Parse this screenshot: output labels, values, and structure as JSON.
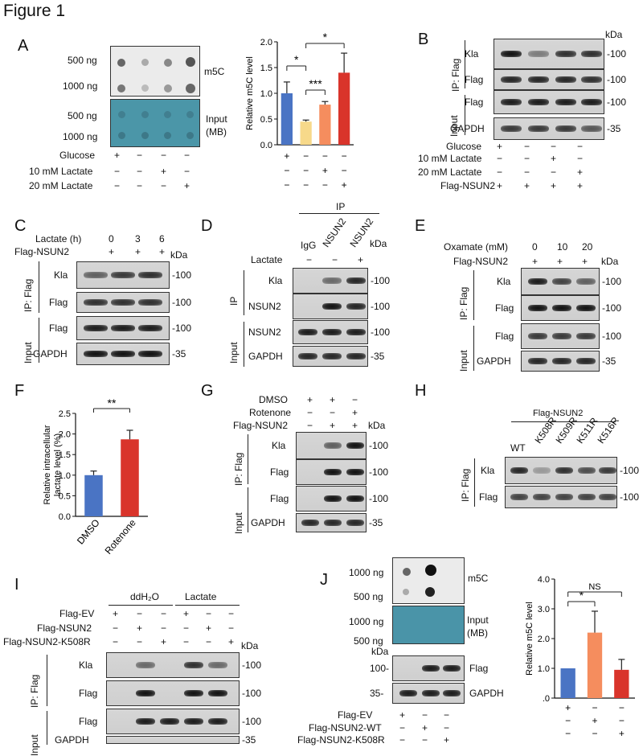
{
  "figure_title": "Figure 1",
  "panels": {
    "A": {
      "label": "A",
      "rows": [
        "500 ng",
        "1000 ng",
        "500 ng",
        "1000 ng"
      ],
      "m5c": "m5C",
      "input": "Input",
      "mb": "(MB)",
      "conds": [
        "Glucose",
        "10 mM Lactate",
        "20 mM Lactate"
      ],
      "signs": [
        [
          "+",
          "−",
          "−",
          "−"
        ],
        [
          "−",
          "−",
          "+",
          "−"
        ],
        [
          "−",
          "−",
          "−",
          "+"
        ]
      ]
    },
    "B": {
      "label": "B",
      "kda": "kDa",
      "ip": "IP: Flag",
      "input": "Input",
      "bands": [
        "Kla",
        "Flag",
        "Flag",
        "GAPDH"
      ],
      "mw": [
        "100",
        "100",
        "100",
        "35"
      ],
      "conds": [
        "Glucose",
        "10 mM Lactate",
        "20 mM Lactate",
        "Flag-NSUN2"
      ],
      "signs": [
        [
          "+",
          "−",
          "−",
          "−"
        ],
        [
          "−",
          "−",
          "+",
          "−"
        ],
        [
          "−",
          "−",
          "−",
          "+"
        ],
        [
          "+",
          "+",
          "+",
          "+"
        ]
      ]
    },
    "C": {
      "label": "C",
      "kda": "kDa",
      "ip": "IP: Flag",
      "input": "Input",
      "bands": [
        "Kla",
        "Flag",
        "Flag",
        "GAPDH"
      ],
      "mw": [
        "100",
        "100",
        "100",
        "35"
      ],
      "conds": [
        "Lactate (h)",
        "Flag-NSUN2"
      ],
      "signs": [
        [
          "0",
          "3",
          "6"
        ],
        [
          "+",
          "+",
          "+"
        ]
      ]
    },
    "D": {
      "label": "D",
      "kda": "kDa",
      "ip_top": "IP",
      "cols": [
        "IgG",
        "NSUN2",
        "NSUN2"
      ],
      "lactate": "Lactate",
      "lac_signs": [
        "−",
        "−",
        "+"
      ],
      "ip": "IP",
      "input": "Input",
      "bands": [
        "Kla",
        "NSUN2",
        "NSUN2",
        "GAPDH"
      ],
      "mw": [
        "100",
        "100",
        "100",
        "35"
      ]
    },
    "E": {
      "label": "E",
      "kda": "kDa",
      "ip": "IP: Flag",
      "input": "Input",
      "bands": [
        "Kla",
        "Flag",
        "Flag",
        "GAPDH"
      ],
      "mw": [
        "100",
        "100",
        "100",
        "35"
      ],
      "conds": [
        "Oxamate (mM)",
        "Flag-NSUN2"
      ],
      "signs": [
        [
          "0",
          "10",
          "20"
        ],
        [
          "+",
          "+",
          "+"
        ]
      ]
    },
    "F": {
      "label": "F",
      "sig": "**"
    },
    "G": {
      "label": "G",
      "kda": "kDa",
      "ip": "IP: Flag",
      "input": "Input",
      "bands": [
        "Kla",
        "Flag",
        "Flag",
        "GAPDH"
      ],
      "mw": [
        "100",
        "100",
        "100",
        "35"
      ],
      "conds": [
        "DMSO",
        "Rotenone",
        "Flag-NSUN2"
      ],
      "signs": [
        [
          "+",
          "+",
          "−"
        ],
        [
          "−",
          "−",
          "+"
        ],
        [
          "−",
          "+",
          "+"
        ]
      ]
    },
    "H": {
      "label": "H",
      "top": "Flag-NSUN2",
      "cols": [
        "WT",
        "K508R",
        "K509R",
        "K511R",
        "K516R"
      ],
      "ip": "IP: Flag",
      "bands": [
        "Kla",
        "Flag"
      ],
      "mw": [
        "100",
        "100"
      ]
    },
    "I": {
      "label": "I",
      "kda": "kDa",
      "groups": [
        "ddH₂O",
        "Lactate"
      ],
      "conds": [
        "Flag-EV",
        "Flag-NSUN2",
        "Flag-NSUN2-K508R"
      ],
      "signs": [
        [
          "+",
          "−",
          "−",
          "+",
          "−",
          "−"
        ],
        [
          "−",
          "+",
          "−",
          "−",
          "+",
          "−"
        ],
        [
          "−",
          "−",
          "+",
          "−",
          "−",
          "+"
        ]
      ],
      "ip": "IP: Flag",
      "input": "Input",
      "bands": [
        "Kla",
        "Flag",
        "Flag",
        "GAPDH"
      ],
      "mw": [
        "100",
        "100",
        "100",
        "35"
      ]
    },
    "J": {
      "label": "J",
      "rows": [
        "1000 ng",
        "500 ng",
        "1000 ng",
        "500 ng"
      ],
      "m5c": "m5C",
      "input": "Input",
      "mb": "(MB)",
      "kda": "kDa",
      "bands": [
        "Flag",
        "GAPDH"
      ],
      "mw": [
        "100",
        "35"
      ],
      "conds": [
        "Flag-EV",
        "Flag-NSUN2-WT",
        "Flag-NSUN2-K508R"
      ],
      "signs": [
        [
          "+",
          "−",
          "−"
        ],
        [
          "−",
          "+",
          "−"
        ],
        [
          "−",
          "−",
          "+"
        ]
      ]
    }
  },
  "chart_data": [
    {
      "type": "bar",
      "panel": "A",
      "ylabel": "Relative m5C level",
      "ylim": [
        0,
        2.0
      ],
      "yticks": [
        "0.0",
        "0.5",
        "1.0",
        "1.5",
        "2.0"
      ],
      "values": [
        1.0,
        0.45,
        0.78,
        1.4
      ],
      "errors": [
        0.22,
        0.03,
        0.06,
        0.38
      ],
      "colors": [
        "#4a74c4",
        "#f7d98a",
        "#f58d5e",
        "#d9342b"
      ],
      "signs": [
        [
          "+",
          "−",
          "−",
          "−"
        ],
        [
          "−",
          "−",
          "+",
          "−"
        ],
        [
          "−",
          "−",
          "−",
          "+"
        ]
      ],
      "sig": [
        {
          "a": 0,
          "b": 1,
          "t": "*"
        },
        {
          "a": 1,
          "b": 2,
          "t": "***"
        },
        {
          "a": 1,
          "b": 3,
          "t": "*"
        }
      ]
    },
    {
      "type": "bar",
      "panel": "F",
      "ylabel": "Relative intracellular lactate level (%)",
      "ylim": [
        0,
        2.5
      ],
      "yticks": [
        "0.0",
        "0.5",
        "1.0",
        "1.5",
        "2.0",
        "2.5"
      ],
      "categories": [
        "DMSO",
        "Rotenone"
      ],
      "values": [
        1.0,
        1.87
      ],
      "errors": [
        0.1,
        0.22
      ],
      "colors": [
        "#4a74c4",
        "#d9342b"
      ],
      "sig": "**"
    },
    {
      "type": "bar",
      "panel": "J",
      "ylabel": "Relative m5C level",
      "ylim": [
        0,
        4.0
      ],
      "yticks": [
        ".0",
        "1.0",
        "2.0",
        "3.0",
        "4.0"
      ],
      "values": [
        1.0,
        2.2,
        0.95
      ],
      "errors": [
        0.0,
        0.72,
        0.35
      ],
      "colors": [
        "#4a74c4",
        "#f58d5e",
        "#d9342b"
      ],
      "signs": [
        [
          "+",
          "−",
          "−"
        ],
        [
          "−",
          "+",
          "−"
        ],
        [
          "−",
          "−",
          "+"
        ]
      ],
      "sig": [
        {
          "a": 0,
          "b": 1,
          "t": "*"
        },
        {
          "a": 0,
          "b": 2,
          "t": "NS"
        }
      ]
    }
  ]
}
